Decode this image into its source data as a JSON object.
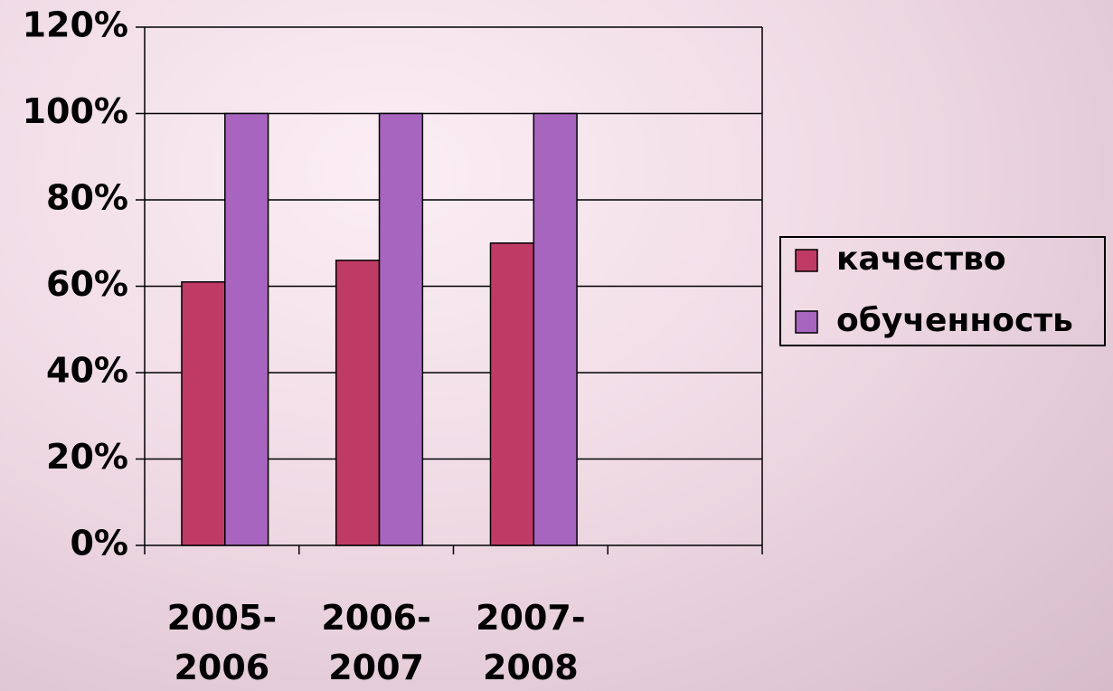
{
  "chart_data": {
    "type": "bar",
    "categories": [
      "2005-2006",
      "2006-2007",
      "2007-2008",
      null
    ],
    "series": [
      {
        "name": "качество",
        "color": "#bf3b65",
        "values": [
          61,
          66,
          70,
          null
        ]
      },
      {
        "name": "обученность",
        "color": "#a865bf",
        "values": [
          100,
          100,
          100,
          null
        ]
      }
    ],
    "ylim": [
      0,
      120
    ],
    "yticks": [
      {
        "value": 0,
        "label": "0%"
      },
      {
        "value": 20,
        "label": "20%"
      },
      {
        "value": 40,
        "label": "40%"
      },
      {
        "value": 60,
        "label": "60%"
      },
      {
        "value": 80,
        "label": "80%"
      },
      {
        "value": 100,
        "label": "100%"
      },
      {
        "value": 120,
        "label": "120%"
      }
    ],
    "grid": true,
    "legend": "right"
  }
}
